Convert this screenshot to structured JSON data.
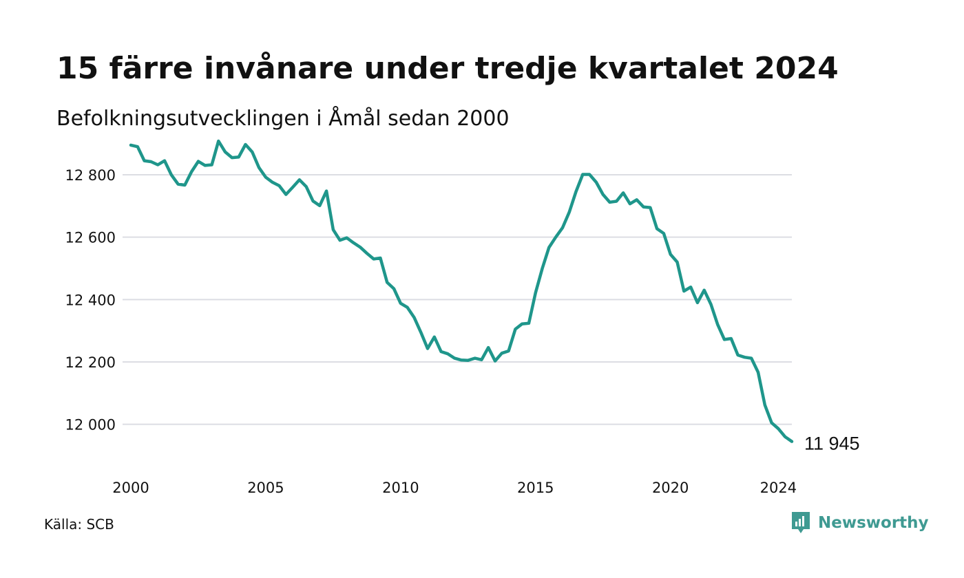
{
  "title": "15 färre invånare under tredje kvartalet 2024",
  "subtitle": "Befolkningsutvecklingen i Åmål sedan 2000",
  "source": "Källa: SCB",
  "brand": "Newsworthy",
  "colors": {
    "line": "#1f968b",
    "grid": "#dcdde3",
    "brand": "#3f9a92"
  },
  "chart_data": {
    "type": "line",
    "xlim": [
      2000,
      2024.5
    ],
    "ylim": [
      11900,
      12950
    ],
    "yticks": [
      12000,
      12200,
      12400,
      12600,
      12800
    ],
    "ytick_labels": [
      "12 000",
      "12 200",
      "12 400",
      "12 600",
      "12 800"
    ],
    "xticks": [
      2000,
      2005,
      2010,
      2015,
      2020,
      2024
    ],
    "xtick_labels": [
      "2000",
      "2005",
      "2010",
      "2015",
      "2020",
      "2024"
    ],
    "end_label": "11 945",
    "grid": true,
    "series": [
      {
        "x": [
          2000.0,
          2000.25,
          2000.5,
          2000.75,
          2001.0,
          2001.25,
          2001.5,
          2001.75,
          2002.0,
          2002.25,
          2002.5,
          2002.75,
          2003.0,
          2003.25,
          2003.5,
          2003.75,
          2004.0,
          2004.25,
          2004.5,
          2004.75,
          2005.0,
          2005.25,
          2005.5,
          2005.75,
          2006.0,
          2006.25,
          2006.5,
          2006.75,
          2007.0,
          2007.25,
          2007.5,
          2007.75,
          2008.0,
          2008.25,
          2008.5,
          2008.75,
          2009.0,
          2009.25,
          2009.5,
          2009.75,
          2010.0,
          2010.25,
          2010.5,
          2010.75,
          2011.0,
          2011.25,
          2011.5,
          2011.75,
          2012.0,
          2012.25,
          2012.5,
          2012.75,
          2013.0,
          2013.25,
          2013.5,
          2013.75,
          2014.0,
          2014.25,
          2014.5,
          2014.75,
          2015.0,
          2015.25,
          2015.5,
          2015.75,
          2016.0,
          2016.25,
          2016.5,
          2016.75,
          2017.0,
          2017.25,
          2017.5,
          2017.75,
          2018.0,
          2018.25,
          2018.5,
          2018.75,
          2019.0,
          2019.25,
          2019.5,
          2019.75,
          2020.0,
          2020.25,
          2020.5,
          2020.75,
          2021.0,
          2021.25,
          2021.5,
          2021.75,
          2022.0,
          2022.25,
          2022.5,
          2022.75,
          2023.0,
          2023.25,
          2023.5,
          2023.75,
          2024.0,
          2024.25,
          2024.5
        ],
        "y": [
          12895,
          12890,
          12845,
          12842,
          12832,
          12845,
          12800,
          12770,
          12767,
          12810,
          12843,
          12830,
          12832,
          12908,
          12873,
          12855,
          12857,
          12897,
          12873,
          12823,
          12792,
          12776,
          12765,
          12737,
          12760,
          12784,
          12762,
          12716,
          12701,
          12748,
          12624,
          12590,
          12598,
          12582,
          12568,
          12548,
          12530,
          12533,
          12455,
          12435,
          12388,
          12375,
          12343,
          12295,
          12243,
          12280,
          12233,
          12226,
          12212,
          12206,
          12205,
          12212,
          12207,
          12246,
          12203,
          12228,
          12235,
          12305,
          12322,
          12324,
          12422,
          12500,
          12567,
          12600,
          12630,
          12680,
          12746,
          12801,
          12801,
          12776,
          12737,
          12712,
          12715,
          12742,
          12707,
          12720,
          12697,
          12695,
          12627,
          12612,
          12545,
          12520,
          12427,
          12440,
          12390,
          12430,
          12385,
          12320,
          12272,
          12275,
          12222,
          12215,
          12212,
          12167,
          12062,
          12005,
          11986,
          11960,
          11945
        ]
      }
    ]
  }
}
